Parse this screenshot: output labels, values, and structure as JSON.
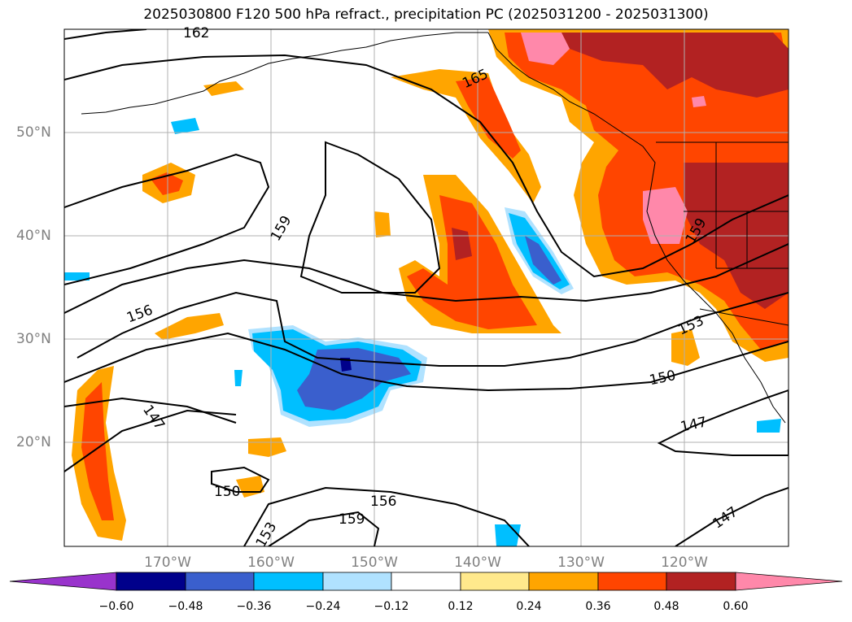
{
  "title": "2025030800 F120 500 hPa refract., precipitation PC (2025031200 - 2025031300)",
  "lat_labels": [
    "50°N",
    "40°N",
    "30°N",
    "20°N"
  ],
  "lon_labels": [
    "170°W",
    "160°W",
    "150°W",
    "140°W",
    "130°W",
    "120°W"
  ],
  "contour_labels": [
    "162",
    "165",
    "159",
    "156",
    "159",
    "153",
    "150",
    "147",
    "150",
    "153",
    "156",
    "159",
    "147",
    "147"
  ],
  "colorbar": {
    "ticks": [
      "−0.60",
      "−0.48",
      "−0.36",
      "−0.24",
      "−0.12",
      "0.12",
      "0.24",
      "0.36",
      "0.48",
      "0.60"
    ],
    "colors": [
      "#9933cc",
      "#00008b",
      "#3a5fcd",
      "#00bfff",
      "#b0e2ff",
      "#ffffff",
      "#ffe98c",
      "#ffa500",
      "#ff4500",
      "#b22222",
      "#ff88aa"
    ]
  }
}
